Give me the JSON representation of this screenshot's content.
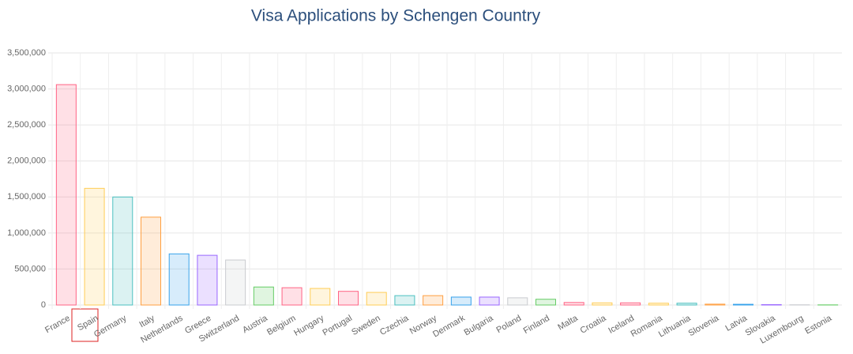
{
  "chart_data": {
    "type": "bar",
    "title": "Visa Applications by Schengen Country",
    "categories": [
      "France",
      "Spain",
      "Germany",
      "Italy",
      "Netherlands",
      "Greece",
      "Switzerland",
      "Austria",
      "Belgium",
      "Hungary",
      "Portugal",
      "Sweden",
      "Czechia",
      "Norway",
      "Denmark",
      "Bulgaria",
      "Poland",
      "Finland",
      "Malta",
      "Croatia",
      "Iceland",
      "Romania",
      "Lithuania",
      "Slovenia",
      "Latvia",
      "Slovakia",
      "Luxembourg",
      "Estonia"
    ],
    "values": [
      3060000,
      1620000,
      1500000,
      1220000,
      710000,
      690000,
      625000,
      250000,
      240000,
      230000,
      190000,
      175000,
      130000,
      130000,
      110000,
      110000,
      100000,
      80000,
      35000,
      30000,
      30000,
      25000,
      25000,
      12000,
      10000,
      5000,
      3000,
      2000
    ],
    "colors": [
      "#ff6384",
      "#ffcd56",
      "#4bc0c0",
      "#ff9f40",
      "#36a2eb",
      "#9966ff",
      "#c9cbcf",
      "#66cc66",
      "#ff6384",
      "#ffcd56",
      "#ff6384",
      "#ffcd56",
      "#4bc0c0",
      "#ff9f40",
      "#36a2eb",
      "#9966ff",
      "#c9cbcf",
      "#66cc66",
      "#ff6384",
      "#ffcd56",
      "#ff6384",
      "#ffcd56",
      "#4bc0c0",
      "#ff9f40",
      "#36a2eb",
      "#9966ff",
      "#c9cbcf",
      "#66cc66"
    ],
    "ylim": [
      0,
      3500000
    ],
    "yticks": [
      0,
      {
        "value": 500000,
        "label": "500,000"
      },
      {
        "value": 1000000,
        "label": "1,000,000"
      },
      {
        "value": 1500000,
        "label": "1,500,000"
      },
      {
        "value": 2000000,
        "label": "2,000,000"
      },
      {
        "value": 2500000,
        "label": "2,500,000"
      },
      {
        "value": 3000000,
        "label": "3,000,000"
      },
      {
        "value": 3500000,
        "label": "3,500,000"
      }
    ],
    "grid": true
  }
}
